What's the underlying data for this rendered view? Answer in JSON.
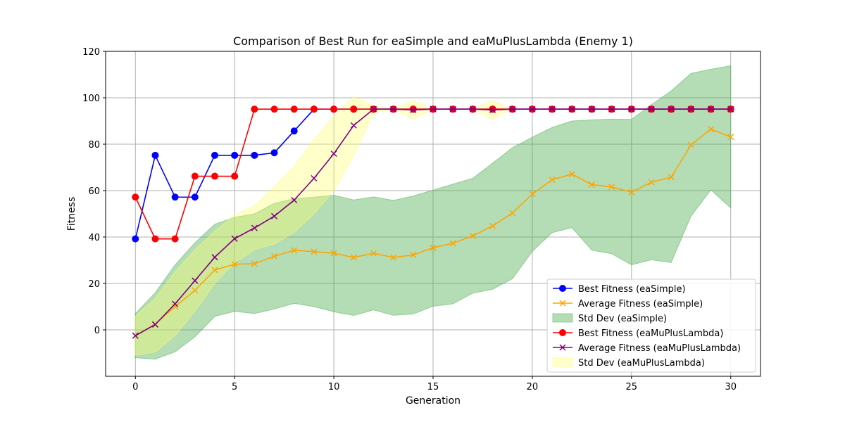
{
  "chart_data": {
    "type": "line",
    "title": "Comparison of Best Run for eaSimple and eaMuPlusLambda (Enemy 1)",
    "xlabel": "Generation",
    "ylabel": "Fitness",
    "xlim": [
      -1.5,
      31.5
    ],
    "ylim": [
      -20,
      120
    ],
    "xticks": [
      0,
      5,
      10,
      15,
      20,
      25,
      30
    ],
    "yticks": [
      0,
      20,
      40,
      60,
      80,
      100,
      120
    ],
    "grid": true,
    "legend_position": "lower-right",
    "x": [
      0,
      1,
      2,
      3,
      4,
      5,
      6,
      7,
      8,
      9,
      10,
      11,
      12,
      13,
      14,
      15,
      16,
      17,
      18,
      19,
      20,
      21,
      22,
      23,
      24,
      25,
      26,
      27,
      28,
      29,
      30
    ],
    "series": [
      {
        "name": "Best Fitness (eaSimple)",
        "kind": "line",
        "marker": "circle",
        "color": "#0000ff",
        "values": [
          39.2,
          75.2,
          57.2,
          57.2,
          75.2,
          75.2,
          75.2,
          76.3,
          85.7,
          95.1,
          95.1,
          95.1,
          95.1,
          95.1,
          95.1,
          95.1,
          95.1,
          95.1,
          95.1,
          95.1,
          95.1,
          95.1,
          95.1,
          95.1,
          95.1,
          95.1,
          95.1,
          95.1,
          95.1,
          95.1,
          95.1
        ]
      },
      {
        "name": "Average Fitness (eaSimple)",
        "kind": "line",
        "marker": "x",
        "color": "#ffa500",
        "values": [
          -2.5,
          2.5,
          10.0,
          17.0,
          25.8,
          28.3,
          28.5,
          31.7,
          34.3,
          33.7,
          33.0,
          31.2,
          33.0,
          31.2,
          32.3,
          35.4,
          37.3,
          40.5,
          44.8,
          50.3,
          58.5,
          64.7,
          67.1,
          62.6,
          61.6,
          59.3,
          63.6,
          65.8,
          79.7,
          86.5,
          83.1
        ]
      },
      {
        "name": "Std Dev (eaSimple)",
        "kind": "band",
        "color": "#4caf50",
        "lower": [
          -12.0,
          -12.6,
          -9.5,
          -3.0,
          5.8,
          8.0,
          7.0,
          9.0,
          11.4,
          10.0,
          7.8,
          6.2,
          8.6,
          6.3,
          6.8,
          10.2,
          11.2,
          15.8,
          17.5,
          22.0,
          33.8,
          41.9,
          44.0,
          34.3,
          32.8,
          28.0,
          30.2,
          29.0,
          49.0,
          60.3,
          52.5
        ],
        "upper": [
          7.0,
          16.0,
          28.0,
          37.5,
          45.5,
          48.5,
          50.0,
          54.5,
          56.5,
          57.2,
          58.0,
          56.0,
          57.3,
          55.8,
          57.7,
          60.2,
          62.8,
          65.3,
          71.8,
          78.5,
          83.0,
          87.2,
          90.0,
          90.5,
          90.8,
          90.7,
          97.0,
          103.0,
          110.5,
          112.3,
          113.8
        ]
      },
      {
        "name": "Best Fitness (eaMuPlusLambda)",
        "kind": "line",
        "marker": "circle",
        "color": "#ff0000",
        "values": [
          57.2,
          39.2,
          39.2,
          66.2,
          66.2,
          66.2,
          95.1,
          95.1,
          95.1,
          95.1,
          95.1,
          95.1,
          95.1,
          95.1,
          95.1,
          95.1,
          95.1,
          95.1,
          95.1,
          95.1,
          95.1,
          95.1,
          95.1,
          95.1,
          95.1,
          95.1,
          95.1,
          95.1,
          95.1,
          95.1,
          95.1
        ]
      },
      {
        "name": "Average Fitness (eaMuPlusLambda)",
        "kind": "line",
        "marker": "x",
        "color": "#800080",
        "values": [
          -2.5,
          2.3,
          11.2,
          21.2,
          31.3,
          39.3,
          43.9,
          49.0,
          55.9,
          65.3,
          75.9,
          88.1,
          95.1,
          95.1,
          94.8,
          95.1,
          95.1,
          95.1,
          94.8,
          95.1,
          95.1,
          95.1,
          95.1,
          95.1,
          95.1,
          95.1,
          95.1,
          95.1,
          95.1,
          95.1,
          95.1
        ]
      },
      {
        "name": "Std Dev (eaMuPlusLambda)",
        "kind": "band",
        "color": "#ffff66",
        "lower": [
          -11.0,
          -9.5,
          -2.5,
          8.0,
          20.0,
          29.0,
          34.5,
          37.0,
          42.0,
          50.0,
          60.0,
          75.0,
          93.5,
          95.1,
          90.8,
          95.1,
          95.1,
          95.1,
          90.8,
          95.1,
          95.1,
          95.1,
          95.1,
          95.1,
          95.1,
          95.1,
          95.1,
          95.1,
          95.1,
          95.1,
          95.1
        ],
        "upper": [
          6.0,
          13.5,
          25.0,
          34.5,
          42.5,
          49.5,
          53.5,
          61.5,
          70.5,
          82.0,
          92.0,
          100.5,
          96.5,
          95.1,
          98.8,
          95.1,
          95.1,
          95.1,
          98.8,
          95.1,
          95.1,
          95.1,
          95.1,
          95.1,
          95.1,
          95.1,
          95.1,
          95.1,
          95.1,
          95.1,
          95.1
        ]
      }
    ]
  }
}
